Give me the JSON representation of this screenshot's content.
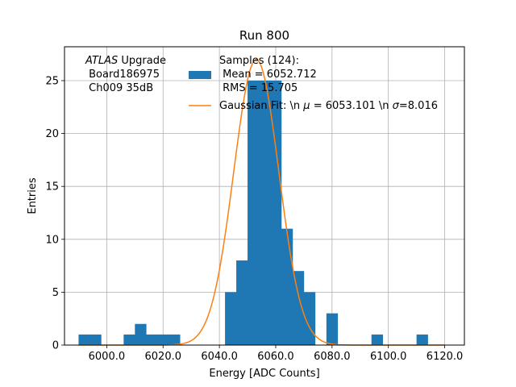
{
  "chart_data": {
    "type": "bar",
    "title": "Run 800",
    "xlabel": "Energy [ADC Counts]",
    "ylabel": "Entries",
    "xlim": [
      5985,
      6127
    ],
    "ylim": [
      0,
      28.2
    ],
    "xticks": [
      6000,
      6020,
      6040,
      6060,
      6080,
      6100,
      6120
    ],
    "xtick_labels": [
      "6000.0",
      "6020.0",
      "6040.0",
      "6060.0",
      "6080.0",
      "6100.0",
      "6120.0"
    ],
    "yticks": [
      0,
      5,
      10,
      15,
      20,
      25
    ],
    "ytick_labels": [
      "0",
      "5",
      "10",
      "15",
      "20",
      "25"
    ],
    "grid": true,
    "bin_width": 4,
    "bin_start": 5990,
    "hist_counts": [
      1,
      1,
      0,
      0,
      1,
      2,
      1,
      1,
      1,
      0,
      0,
      0,
      0,
      5,
      8,
      25,
      25,
      25,
      11,
      7,
      5,
      0,
      3,
      0,
      0,
      0,
      1,
      0,
      0,
      0,
      1
    ],
    "hist_color": "#1f77b4",
    "fit": {
      "type": "gaussian",
      "mu": 6053.101,
      "sigma": 8.016,
      "amplitude": 27.0,
      "color": "#ff7f0e"
    },
    "legend": {
      "placement": "top-center",
      "hist_label_lines": [
        "Samples (124):",
        " Mean = 6052.712",
        " RMS = 15.705"
      ],
      "fit_label_prefix": "Gaussian Fit: \\n ",
      "fit_mu_symbol": "μ",
      "fit_mu_text": " = 6053.101 \\n ",
      "fit_sigma_symbol": "σ",
      "fit_sigma_text": "=8.016"
    },
    "annotation": {
      "italic": "ATLAS",
      "line1_rest": " Upgrade",
      "line2": " Board186975",
      "line3": " Ch009 35dB"
    }
  }
}
